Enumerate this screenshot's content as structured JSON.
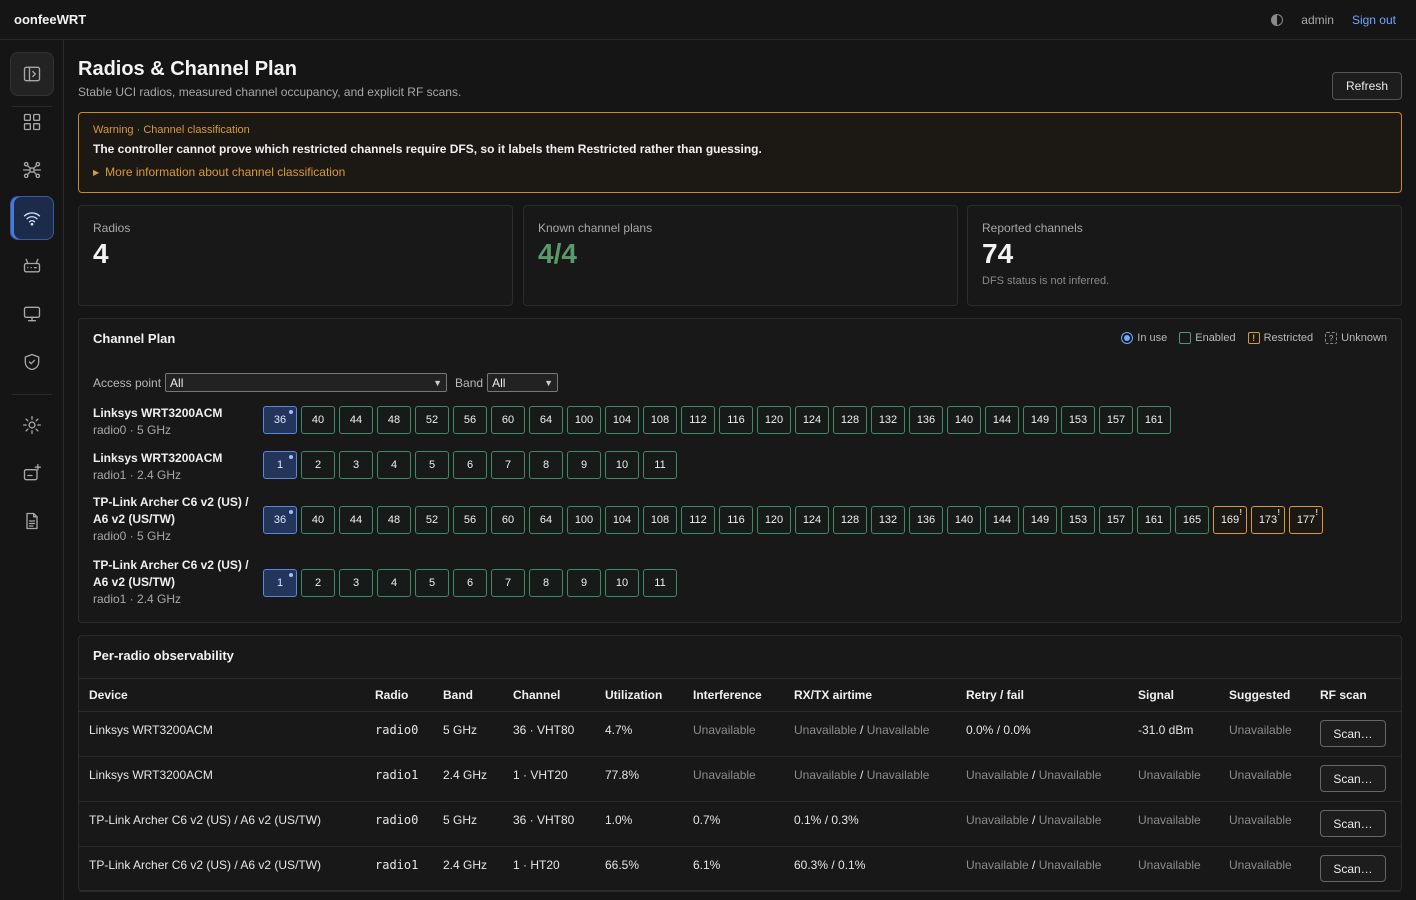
{
  "app": {
    "brand": "oonfeeWRT",
    "user": "admin",
    "sign_out": "Sign out"
  },
  "sidebar": {
    "items": [
      "sidebar-toggle-icon",
      "dashboard-icon",
      "topology-icon",
      "wifi-icon",
      "router-icon",
      "monitor-icon",
      "shield-icon",
      "settings-icon",
      "add-device-icon",
      "document-icon"
    ]
  },
  "page": {
    "title": "Radios & Channel Plan",
    "subtitle": "Stable UCI radios, measured channel occupancy, and explicit RF scans.",
    "refresh": "Refresh"
  },
  "warning": {
    "level": "Warning",
    "separator": "·",
    "topic": "Channel classification",
    "text": "The controller cannot prove which restricted channels require DFS, so it labels them Restricted rather than guessing.",
    "more": "More information about channel classification"
  },
  "stats": {
    "radios": {
      "label": "Radios",
      "value": "4"
    },
    "plans": {
      "label": "Known channel plans",
      "value": "4/4"
    },
    "channels": {
      "label": "Reported channels",
      "value": "74",
      "note": "DFS status is not inferred."
    }
  },
  "channel_plan": {
    "title": "Channel Plan",
    "legend": {
      "in_use": "In use",
      "enabled": "Enabled",
      "restricted": "Restricted",
      "unknown": "Unknown"
    },
    "filters": {
      "ap_label": "Access point",
      "ap_value": "All",
      "band_label": "Band",
      "band_value": "All"
    },
    "radios": [
      {
        "device": "Linksys WRT3200ACM",
        "sub": "radio0 · 5 GHz",
        "channels": [
          "36",
          "40",
          "44",
          "48",
          "52",
          "56",
          "60",
          "64",
          "100",
          "104",
          "108",
          "112",
          "116",
          "120",
          "124",
          "128",
          "132",
          "136",
          "140",
          "144",
          "149",
          "153",
          "157",
          "161"
        ],
        "in_use": "36",
        "restricted": []
      },
      {
        "device": "Linksys WRT3200ACM",
        "sub": "radio1 · 2.4 GHz",
        "channels": [
          "1",
          "2",
          "3",
          "4",
          "5",
          "6",
          "7",
          "8",
          "9",
          "10",
          "11"
        ],
        "in_use": "1",
        "restricted": []
      },
      {
        "device": "TP-Link Archer C6 v2 (US) / A6 v2 (US/TW)",
        "sub": "radio0 · 5 GHz",
        "channels": [
          "36",
          "40",
          "44",
          "48",
          "52",
          "56",
          "60",
          "64",
          "100",
          "104",
          "108",
          "112",
          "116",
          "120",
          "124",
          "128",
          "132",
          "136",
          "140",
          "144",
          "149",
          "153",
          "157",
          "161",
          "165",
          "169",
          "173",
          "177"
        ],
        "in_use": "36",
        "restricted": [
          "169",
          "173",
          "177"
        ]
      },
      {
        "device": "TP-Link Archer C6 v2 (US) / A6 v2 (US/TW)",
        "sub": "radio1 · 2.4 GHz",
        "channels": [
          "1",
          "2",
          "3",
          "4",
          "5",
          "6",
          "7",
          "8",
          "9",
          "10",
          "11"
        ],
        "in_use": "1",
        "restricted": []
      }
    ]
  },
  "observability": {
    "title": "Per-radio observability",
    "columns": [
      "Device",
      "Radio",
      "Band",
      "Channel",
      "Utilization",
      "Interference",
      "RX/TX airtime",
      "Retry / fail",
      "Signal",
      "Suggested",
      "RF scan"
    ],
    "rows": [
      {
        "device": "Linksys WRT3200ACM",
        "radio": "radio0",
        "band": "5 GHz",
        "channel": "36 · VHT80",
        "utilization": "4.7%",
        "interference": "Unavailable",
        "airtime_rx": "Unavailable",
        "airtime_tx": "Unavailable",
        "retry": "0.0%",
        "fail": "0.0%",
        "signal": "-31.0 dBm",
        "suggested": "Unavailable",
        "scan": "Scan…"
      },
      {
        "device": "Linksys WRT3200ACM",
        "radio": "radio1",
        "band": "2.4 GHz",
        "channel": "1 · VHT20",
        "utilization": "77.8%",
        "interference": "Unavailable",
        "airtime_rx": "Unavailable",
        "airtime_tx": "Unavailable",
        "retry": "Unavailable",
        "fail": "Unavailable",
        "signal": "Unavailable",
        "suggested": "Unavailable",
        "scan": "Scan…"
      },
      {
        "device": "TP-Link Archer C6 v2 (US) / A6 v2 (US/TW)",
        "radio": "radio0",
        "band": "5 GHz",
        "channel": "36 · VHT80",
        "utilization": "1.0%",
        "interference": "0.7%",
        "airtime_rx": "0.1%",
        "airtime_tx": "0.3%",
        "retry": "Unavailable",
        "fail": "Unavailable",
        "signal": "Unavailable",
        "suggested": "Unavailable",
        "scan": "Scan…"
      },
      {
        "device": "TP-Link Archer C6 v2 (US) / A6 v2 (US/TW)",
        "radio": "radio1",
        "band": "2.4 GHz",
        "channel": "1 · HT20",
        "utilization": "66.5%",
        "interference": "6.1%",
        "airtime_rx": "60.3%",
        "airtime_tx": "0.1%",
        "retry": "Unavailable",
        "fail": "Unavailable",
        "signal": "Unavailable",
        "suggested": "Unavailable",
        "scan": "Scan…"
      }
    ]
  }
}
